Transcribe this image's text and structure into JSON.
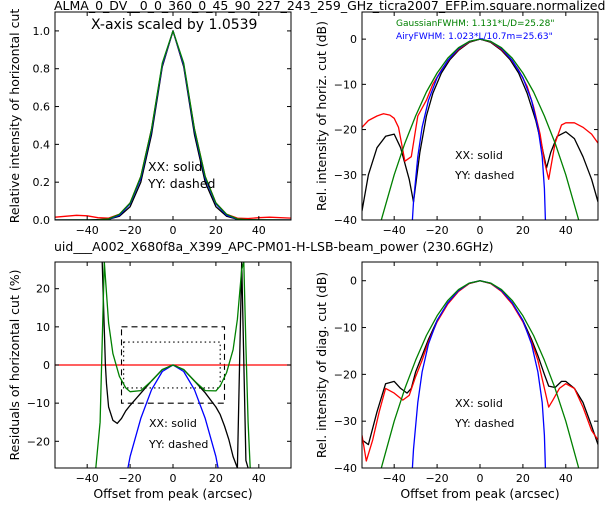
{
  "figure": {
    "title": "ALMA_0_DV__0_0_360_0_45_90_227_243_259_GHz_ticra2007_EFP.im.square.normalized",
    "subtitle": "uid___A002_X680f8a_X399_APC-PM01-H-LSB-beam_power (230.6GHz)",
    "subtitle_color": "#ff0000"
  },
  "chart_data": [
    {
      "id": "p1",
      "type": "line",
      "title": "",
      "xlabel": "",
      "ylabel": "Relative intensity of horizontal cut",
      "xlim": [
        -55,
        55
      ],
      "ylim": [
        0,
        1.1
      ],
      "xticks": [
        -40,
        -20,
        0,
        20,
        40
      ],
      "xticklabels": [
        "−40",
        "−20",
        "0",
        "20",
        "40"
      ],
      "yticks": [
        0,
        0.2,
        0.4,
        0.6,
        0.8,
        1.0
      ],
      "yticklabels": [
        "0.0",
        "0.2",
        "0.4",
        "0.6",
        "0.8",
        "1.0"
      ],
      "annotations": [
        "X-axis scaled by 1.0539",
        "XX: solid",
        "YY: dashed"
      ],
      "series": [
        {
          "color": "#000000",
          "x": [
            -55,
            -40,
            -30,
            -25,
            -20,
            -15,
            -10,
            -5,
            0,
            5,
            10,
            15,
            20,
            25,
            30,
            40,
            55
          ],
          "y": [
            0,
            0,
            0.004,
            0.02,
            0.07,
            0.2,
            0.45,
            0.81,
            1.0,
            0.81,
            0.45,
            0.2,
            0.07,
            0.02,
            0.004,
            0,
            0
          ]
        },
        {
          "color": "#ff0000",
          "x": [
            -55,
            -45,
            -40,
            -35,
            -30,
            -25,
            -20,
            -15,
            -10,
            -5,
            0,
            5,
            10,
            15,
            20,
            25,
            30,
            35,
            40,
            45,
            55
          ],
          "y": [
            0.015,
            0.025,
            0.022,
            0.012,
            0.01,
            0.03,
            0.09,
            0.23,
            0.48,
            0.82,
            1.0,
            0.82,
            0.48,
            0.23,
            0.09,
            0.03,
            0.01,
            0.008,
            0.012,
            0.015,
            0.01
          ]
        },
        {
          "color": "#0000ff",
          "x": [
            -55,
            -35,
            -30,
            -25,
            -20,
            -15,
            -10,
            -5,
            0,
            5,
            10,
            15,
            20,
            25,
            30,
            35,
            55
          ],
          "y": [
            0,
            0,
            0.005,
            0.025,
            0.085,
            0.22,
            0.47,
            0.82,
            1.0,
            0.82,
            0.47,
            0.22,
            0.085,
            0.025,
            0.005,
            0,
            0
          ]
        },
        {
          "color": "#008000",
          "x": [
            -55,
            -35,
            -30,
            -25,
            -20,
            -15,
            -10,
            -5,
            0,
            5,
            10,
            15,
            20,
            25,
            30,
            35,
            55
          ],
          "y": [
            0,
            0.001,
            0.006,
            0.03,
            0.09,
            0.23,
            0.48,
            0.83,
            1.0,
            0.83,
            0.48,
            0.23,
            0.09,
            0.03,
            0.006,
            0.001,
            0
          ]
        }
      ]
    },
    {
      "id": "p2",
      "type": "line",
      "title": "",
      "xlabel": "",
      "ylabel": "Rel. intensity of horiz. cut (dB)",
      "xlim": [
        -55,
        55
      ],
      "ylim": [
        -40,
        6
      ],
      "xticks": [
        -40,
        -20,
        0,
        20,
        40
      ],
      "xticklabels": [
        "−40",
        "−20",
        "0",
        "20",
        "40"
      ],
      "yticks": [
        -40,
        -30,
        -20,
        -10,
        0
      ],
      "yticklabels": [
        "−40",
        "−30",
        "−20",
        "−10",
        "0"
      ],
      "annotations": [
        "XX: solid",
        "YY: dashed"
      ],
      "legend_lines": [
        {
          "text": "GaussianFWHM: 1.131*L/D=25.28\"",
          "color": "#008000"
        },
        {
          "text": "AiryFWHM: 1.023*L/10.7m=25.63\"",
          "color": "#0000ff"
        }
      ],
      "series": [
        {
          "color": "#000000",
          "x": [
            -55,
            -52,
            -48,
            -44,
            -40,
            -37,
            -33,
            -31,
            -28,
            -25,
            -22,
            -18,
            -14,
            -10,
            -5,
            0,
            5,
            10,
            14,
            18,
            22,
            26,
            29,
            31,
            33,
            36,
            40,
            44,
            48,
            52,
            55
          ],
          "y": [
            -38,
            -30,
            -24,
            -21.5,
            -21,
            -24,
            -31,
            -36,
            -25,
            -17,
            -12,
            -7.5,
            -4.5,
            -2.5,
            -0.7,
            0,
            -0.7,
            -2.5,
            -4.5,
            -7.5,
            -12,
            -18,
            -24,
            -28.5,
            -25,
            -21.5,
            -20.5,
            -22,
            -26,
            -31,
            -36
          ]
        },
        {
          "color": "#ff0000",
          "x": [
            -55,
            -52,
            -48,
            -45,
            -42,
            -40,
            -38,
            -35,
            -32,
            -29,
            -25,
            -22,
            -18,
            -14,
            -10,
            -5,
            0,
            5,
            10,
            14,
            18,
            22,
            25,
            28,
            30,
            32,
            35,
            38,
            40,
            44,
            48,
            52,
            55
          ],
          "y": [
            -19.5,
            -18,
            -17,
            -16.5,
            -16.8,
            -17.5,
            -19.5,
            -27,
            -26,
            -17,
            -13.5,
            -10,
            -6.8,
            -4.2,
            -2.3,
            -0.6,
            0,
            -0.6,
            -2.3,
            -4.2,
            -6.8,
            -10.5,
            -15,
            -21,
            -27,
            -31,
            -23,
            -19,
            -18.5,
            -18.5,
            -19.5,
            -21,
            -23
          ]
        },
        {
          "color": "#0000ff",
          "x": [
            -31.5,
            -31,
            -29,
            -27,
            -24,
            -20,
            -15,
            -10,
            -5,
            0,
            5,
            10,
            15,
            20,
            24,
            27,
            29,
            30,
            30.5
          ],
          "y": [
            -40,
            -36,
            -26,
            -19.5,
            -13.5,
            -8.5,
            -4.7,
            -2.1,
            -0.5,
            0,
            -0.5,
            -2.1,
            -4.7,
            -8.5,
            -13.5,
            -19.5,
            -26,
            -33,
            -40
          ]
        },
        {
          "color": "#008000",
          "x": [
            -46,
            -40,
            -35,
            -30,
            -25,
            -20,
            -15,
            -10,
            -5,
            0,
            5,
            10,
            15,
            20,
            25,
            30,
            35,
            40,
            46
          ],
          "y": [
            -40,
            -30,
            -23,
            -17,
            -11.7,
            -7.5,
            -4.2,
            -1.9,
            -0.5,
            0,
            -0.5,
            -1.9,
            -4.2,
            -7.5,
            -11.7,
            -17,
            -23,
            -30,
            -40
          ]
        }
      ]
    },
    {
      "id": "p3",
      "type": "line",
      "title": "",
      "xlabel": "Offset from peak (arcsec)",
      "ylabel": "Residuals of horizontal cut (%)",
      "xlim": [
        -55,
        55
      ],
      "ylim": [
        -27,
        27
      ],
      "xticks": [
        -40,
        -20,
        0,
        20,
        40
      ],
      "xticklabels": [
        "−40",
        "−20",
        "0",
        "20",
        "40"
      ],
      "yticks": [
        -20,
        -10,
        0,
        10,
        20
      ],
      "yticklabels": [
        "−20",
        "−10",
        "0",
        "10",
        "20"
      ],
      "annotations": [
        "XX: solid",
        "YY: dashed"
      ],
      "boxes": [
        {
          "style": "dashed",
          "x": [
            -24,
            24
          ],
          "y": [
            -10,
            10
          ]
        },
        {
          "style": "dotted",
          "x": [
            -23,
            22
          ],
          "y": [
            -6,
            6
          ]
        }
      ],
      "hline": {
        "y": 0,
        "color": "#ff0000"
      },
      "series": [
        {
          "color": "#000000",
          "x": [
            -33,
            -31.5,
            -31,
            -30,
            -28,
            -26,
            -24,
            -22,
            -20,
            -15,
            -10,
            -5,
            0,
            5,
            10,
            15,
            20,
            22,
            24,
            26,
            28,
            30,
            32,
            34,
            35
          ],
          "y": [
            27,
            0,
            -5,
            -11,
            -14.5,
            -15.3,
            -14,
            -12,
            -10.6,
            -7.4,
            -4.2,
            -1.2,
            0,
            -1.2,
            -4.2,
            -7.3,
            -11,
            -13,
            -16,
            -19.5,
            -24,
            -27,
            27,
            -25,
            -27
          ]
        },
        {
          "color": "#0000ff",
          "x": [
            -21,
            -20,
            -15,
            -10,
            -5,
            0,
            5,
            10,
            15,
            20,
            21
          ],
          "y": [
            -27,
            -24,
            -14,
            -6.5,
            -1.7,
            0,
            -1.7,
            -6.5,
            -14,
            -24,
            -27
          ]
        },
        {
          "color": "#008000",
          "x": [
            -36,
            -34,
            -32,
            -30,
            -28,
            -25,
            -22,
            -20,
            -15,
            -10,
            -5,
            0,
            5,
            10,
            15,
            20,
            22,
            25,
            28,
            30,
            32,
            33,
            34,
            35,
            36
          ],
          "y": [
            -27,
            -15,
            27,
            11,
            3,
            -3,
            -6,
            -7,
            -6.7,
            -4.2,
            -1.2,
            0,
            -1.2,
            -4.2,
            -6.7,
            -6.8,
            -5.5,
            -2,
            4,
            12,
            25,
            27,
            5,
            -15,
            -27
          ]
        }
      ]
    },
    {
      "id": "p4",
      "type": "line",
      "title": "",
      "xlabel": "Offset from peak (arcsec)",
      "ylabel": "Rel. intensity of diag. cut (dB)",
      "xlim": [
        -55,
        55
      ],
      "ylim": [
        -40,
        4
      ],
      "xticks": [
        -40,
        -20,
        0,
        20,
        40
      ],
      "xticklabels": [
        "−40",
        "−20",
        "0",
        "20",
        "40"
      ],
      "yticks": [
        -40,
        -30,
        -20,
        -10,
        0
      ],
      "yticklabels": [
        "−40",
        "−30",
        "−20",
        "−10",
        "0"
      ],
      "annotations": [
        "XX: solid",
        "YY: dashed"
      ],
      "series": [
        {
          "color": "#000000",
          "x": [
            -55,
            -52,
            -48,
            -44,
            -40,
            -37,
            -34,
            -32,
            -30,
            -27,
            -24,
            -20,
            -15,
            -10,
            -5,
            0,
            5,
            10,
            15,
            20,
            24,
            27,
            30,
            32,
            35,
            38,
            40,
            44,
            48,
            52,
            55
          ],
          "y": [
            -34,
            -35,
            -28,
            -22,
            -21.5,
            -23,
            -24,
            -23,
            -19.5,
            -16,
            -12.5,
            -8.5,
            -4.8,
            -2.2,
            -0.6,
            0,
            -0.6,
            -2.2,
            -4.8,
            -8.5,
            -12.5,
            -16,
            -20,
            -22.5,
            -22.8,
            -21.5,
            -21.5,
            -23,
            -26,
            -31,
            -35
          ]
        },
        {
          "color": "#ff0000",
          "x": [
            -55,
            -53,
            -50,
            -47,
            -44,
            -40,
            -36,
            -33,
            -30,
            -27,
            -24,
            -20,
            -15,
            -10,
            -5,
            0,
            5,
            10,
            15,
            20,
            24,
            27,
            30,
            32,
            34,
            37,
            40,
            44,
            48,
            52,
            55
          ],
          "y": [
            -33,
            -38.5,
            -34,
            -28,
            -23,
            -24,
            -25.5,
            -24.5,
            -20.5,
            -17,
            -13,
            -8.8,
            -5,
            -2.3,
            -0.6,
            0,
            -0.6,
            -2.3,
            -5,
            -8.8,
            -13,
            -17,
            -23,
            -27,
            -25.5,
            -23,
            -22,
            -23,
            -27,
            -32,
            -34
          ]
        },
        {
          "color": "#0000ff",
          "x": [
            -31.5,
            -31,
            -29,
            -27,
            -24,
            -20,
            -15,
            -10,
            -5,
            0,
            5,
            10,
            15,
            20,
            24,
            27,
            29,
            30,
            30.5
          ],
          "y": [
            -40,
            -36,
            -26,
            -19.5,
            -13.5,
            -8.5,
            -4.7,
            -2.1,
            -0.5,
            0,
            -0.5,
            -2.1,
            -4.7,
            -8.5,
            -13.5,
            -19.5,
            -26,
            -33,
            -40
          ]
        },
        {
          "color": "#008000",
          "x": [
            -46,
            -40,
            -35,
            -30,
            -25,
            -20,
            -15,
            -10,
            -5,
            0,
            5,
            10,
            15,
            20,
            25,
            30,
            35,
            40,
            46
          ],
          "y": [
            -40,
            -30,
            -23,
            -17,
            -11.7,
            -7.5,
            -4.2,
            -1.9,
            -0.5,
            0,
            -0.5,
            -1.9,
            -4.2,
            -7.5,
            -11.7,
            -17,
            -23,
            -30,
            -40
          ]
        }
      ]
    }
  ]
}
